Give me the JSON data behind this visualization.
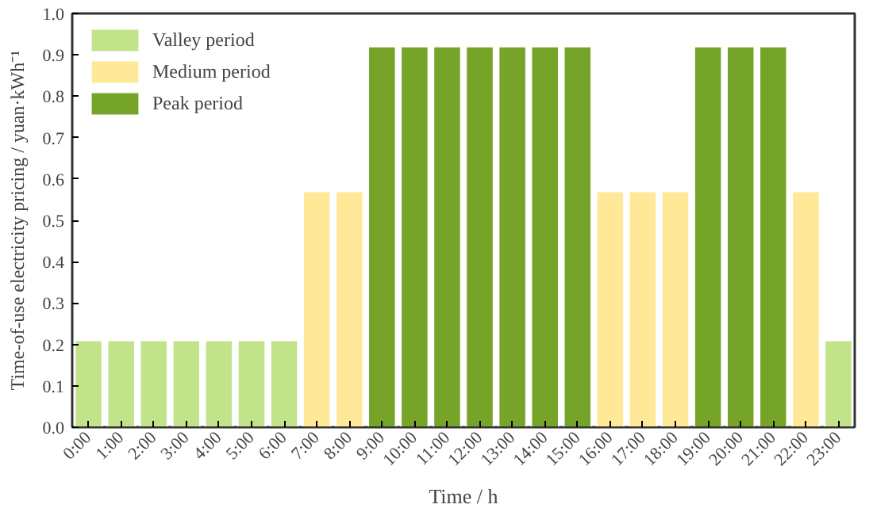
{
  "chart_data": {
    "type": "bar",
    "xlabel": "Time / h",
    "ylabel": "Time-of-use electricity pricing / yuan·kWh⁻¹",
    "categories": [
      "0:00",
      "1:00",
      "2:00",
      "3:00",
      "4:00",
      "5:00",
      "6:00",
      "7:00",
      "8:00",
      "9:00",
      "10:00",
      "11:00",
      "12:00",
      "13:00",
      "14:00",
      "15:00",
      "16:00",
      "17:00",
      "18:00",
      "19:00",
      "20:00",
      "21:00",
      "22:00",
      "23:00"
    ],
    "series": [
      {
        "name": "Valley period",
        "color": "#c2e38a",
        "values": [
          0.21,
          0.21,
          0.21,
          0.21,
          0.21,
          0.21,
          0.21,
          null,
          null,
          null,
          null,
          null,
          null,
          null,
          null,
          null,
          null,
          null,
          null,
          null,
          null,
          null,
          null,
          0.21
        ]
      },
      {
        "name": "Medium period",
        "color": "#ffe999",
        "values": [
          null,
          null,
          null,
          null,
          null,
          null,
          null,
          0.57,
          0.57,
          null,
          null,
          null,
          null,
          null,
          null,
          null,
          0.57,
          0.57,
          0.57,
          null,
          null,
          null,
          0.57,
          null
        ]
      },
      {
        "name": "Peak period",
        "color": "#76a428",
        "values": [
          null,
          null,
          null,
          null,
          null,
          null,
          null,
          null,
          null,
          0.92,
          0.92,
          0.92,
          0.92,
          0.92,
          0.92,
          0.92,
          null,
          null,
          null,
          0.92,
          0.92,
          0.92,
          null,
          null
        ]
      }
    ],
    "ylim": [
      0,
      1
    ],
    "yticks": [
      {
        "value": 0,
        "label": "0.0"
      },
      0.1,
      0.2,
      0.3,
      0.4,
      0.5,
      0.6,
      0.7,
      0.8,
      0.9,
      {
        "value": 1,
        "label": "1.0"
      }
    ],
    "grid": false,
    "legend": "top left"
  }
}
